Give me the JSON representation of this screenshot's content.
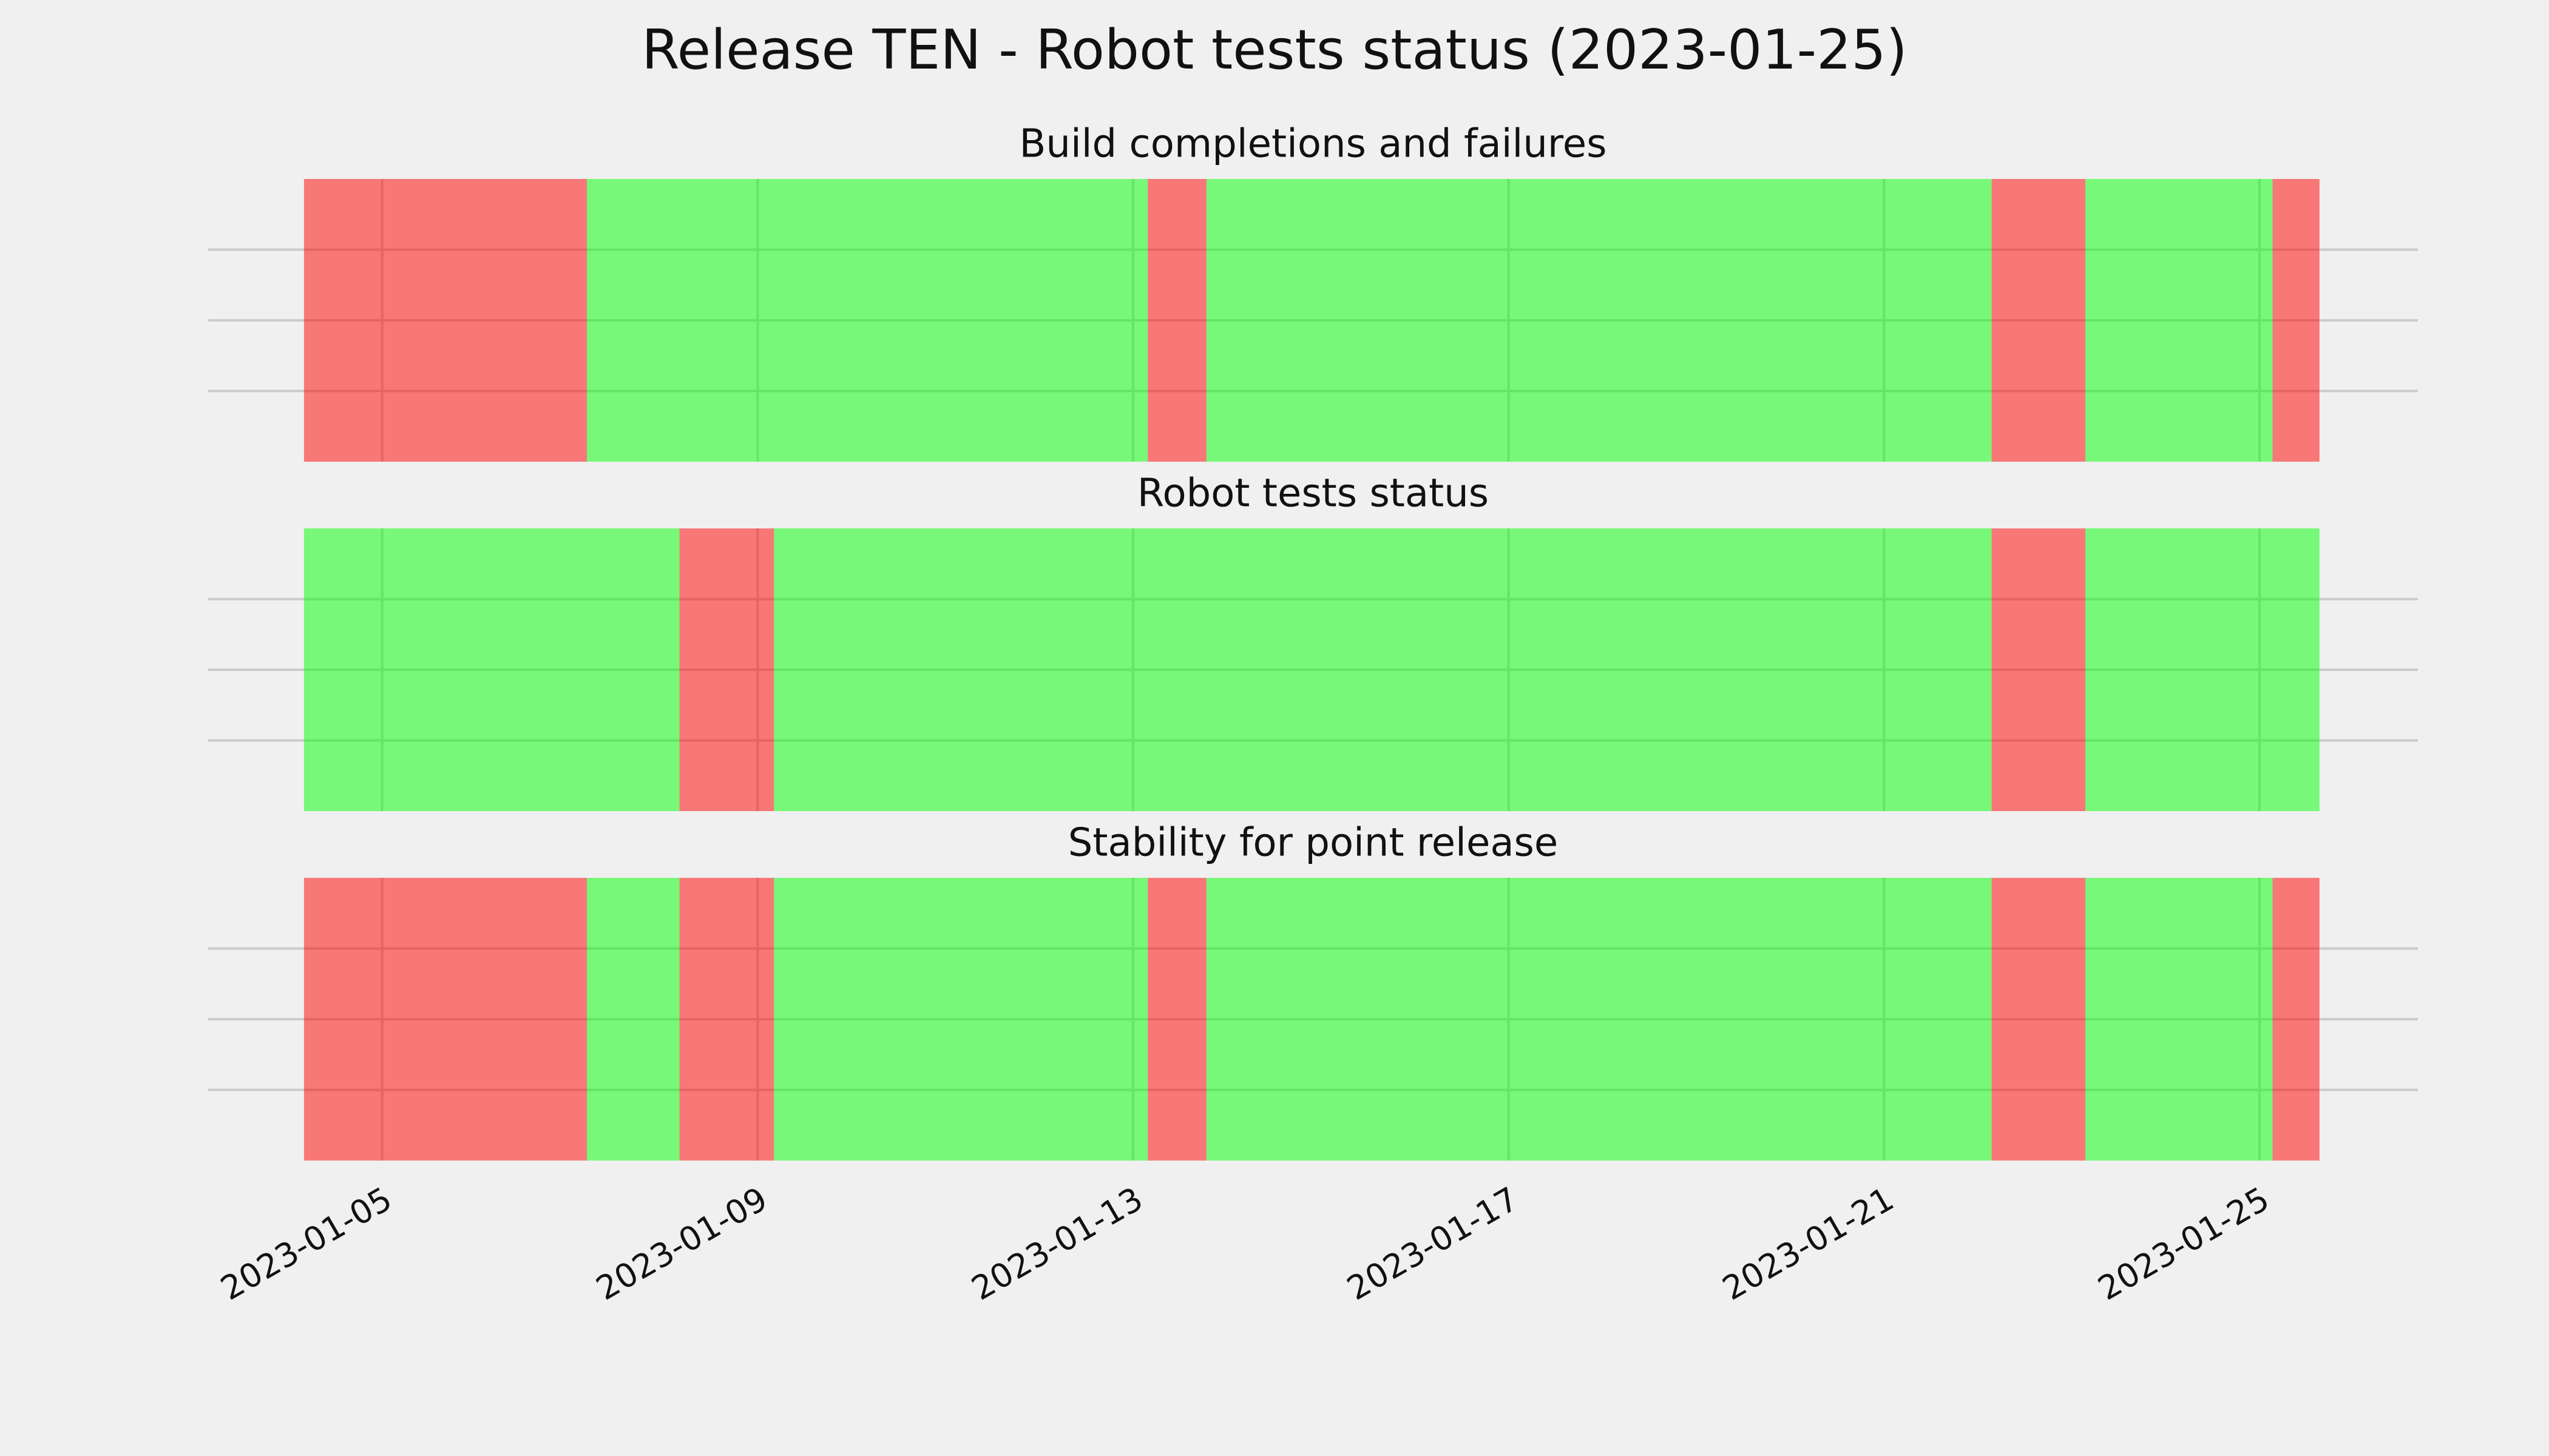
{
  "title": "Release TEN - Robot tests status (2023-01-25)",
  "chart_data": [
    {
      "type": "timeline",
      "title": "Build completions and failures",
      "xlim": [
        "2023-01-03T03:30",
        "2023-01-26T16:30"
      ],
      "xticks": [
        "2023-01-05",
        "2023-01-09",
        "2023-01-13",
        "2023-01-17",
        "2023-01-21",
        "2023-01-25"
      ],
      "ylim": [
        0,
        1
      ],
      "yticks": [
        0.25,
        0.5,
        0.75
      ],
      "grid": true,
      "alpha": 0.5,
      "show_xtick_labels": false,
      "spans": [
        {
          "start": "2023-01-04T04:00",
          "end": "2023-01-07T04:20",
          "color": "#ff0000"
        },
        {
          "start": "2023-01-07T04:20",
          "end": "2023-01-13T03:45",
          "color": "#00ff00"
        },
        {
          "start": "2023-01-13T03:45",
          "end": "2023-01-13T18:45",
          "color": "#ff0000"
        },
        {
          "start": "2023-01-13T18:45",
          "end": "2023-01-22T03:30",
          "color": "#00ff00"
        },
        {
          "start": "2023-01-22T03:30",
          "end": "2023-01-23T03:30",
          "color": "#ff0000"
        },
        {
          "start": "2023-01-23T03:30",
          "end": "2023-01-25T03:20",
          "color": "#00ff00"
        },
        {
          "start": "2023-01-25T03:20",
          "end": "2023-01-25T15:20",
          "color": "#ff0000"
        }
      ]
    },
    {
      "type": "timeline",
      "title": "Robot tests status",
      "xlim": [
        "2023-01-03T03:30",
        "2023-01-26T16:30"
      ],
      "xticks": [
        "2023-01-05",
        "2023-01-09",
        "2023-01-13",
        "2023-01-17",
        "2023-01-21",
        "2023-01-25"
      ],
      "ylim": [
        0,
        1
      ],
      "yticks": [
        0.25,
        0.5,
        0.75
      ],
      "grid": true,
      "alpha": 0.5,
      "show_xtick_labels": false,
      "spans": [
        {
          "start": "2023-01-04T04:00",
          "end": "2023-01-08T04:00",
          "color": "#00ff00"
        },
        {
          "start": "2023-01-08T04:00",
          "end": "2023-01-09T04:10",
          "color": "#ff0000"
        },
        {
          "start": "2023-01-09T04:10",
          "end": "2023-01-22T03:30",
          "color": "#00ff00"
        },
        {
          "start": "2023-01-22T03:30",
          "end": "2023-01-23T03:30",
          "color": "#ff0000"
        },
        {
          "start": "2023-01-23T03:30",
          "end": "2023-01-25T15:20",
          "color": "#00ff00"
        }
      ]
    },
    {
      "type": "timeline",
      "title": "Stability for point release",
      "xlim": [
        "2023-01-03T03:30",
        "2023-01-26T16:30"
      ],
      "xticks": [
        "2023-01-05",
        "2023-01-09",
        "2023-01-13",
        "2023-01-17",
        "2023-01-21",
        "2023-01-25"
      ],
      "ylim": [
        0,
        1
      ],
      "yticks": [
        0.25,
        0.5,
        0.75
      ],
      "grid": true,
      "alpha": 0.5,
      "show_xtick_labels": true,
      "spans": [
        {
          "start": "2023-01-04T04:00",
          "end": "2023-01-07T04:20",
          "color": "#ff0000"
        },
        {
          "start": "2023-01-07T04:20",
          "end": "2023-01-08T04:00",
          "color": "#00ff00"
        },
        {
          "start": "2023-01-08T04:00",
          "end": "2023-01-09T04:10",
          "color": "#ff0000"
        },
        {
          "start": "2023-01-09T04:10",
          "end": "2023-01-13T03:45",
          "color": "#00ff00"
        },
        {
          "start": "2023-01-13T03:45",
          "end": "2023-01-13T18:45",
          "color": "#ff0000"
        },
        {
          "start": "2023-01-13T18:45",
          "end": "2023-01-22T03:30",
          "color": "#00ff00"
        },
        {
          "start": "2023-01-22T03:30",
          "end": "2023-01-23T03:30",
          "color": "#ff0000"
        },
        {
          "start": "2023-01-23T03:30",
          "end": "2023-01-25T03:20",
          "color": "#00ff00"
        },
        {
          "start": "2023-01-25T03:20",
          "end": "2023-01-25T15:20",
          "color": "#ff0000"
        }
      ]
    }
  ]
}
